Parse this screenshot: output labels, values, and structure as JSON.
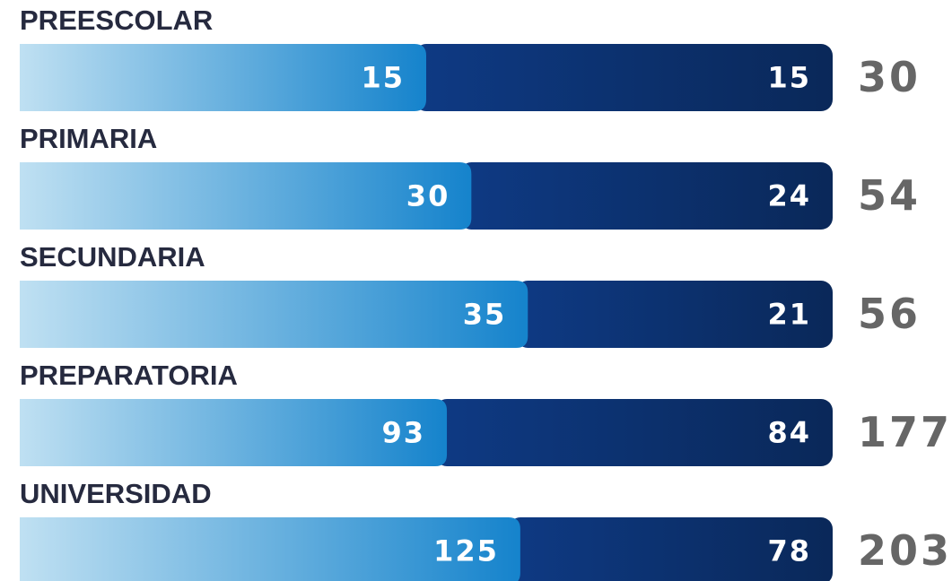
{
  "chart_data": {
    "type": "bar",
    "orientation": "horizontal",
    "stacked": "percent",
    "categories": [
      "PREESCOLAR",
      "PRIMARIA",
      "SECUNDARIA",
      "PREPARATORIA",
      "UNIVERSIDAD"
    ],
    "series": [
      {
        "colors": [
          "#bfe0f2",
          "#1583cc"
        ],
        "values": [
          15,
          30,
          35,
          93,
          125
        ]
      },
      {
        "colors": [
          "#0e3a84",
          "#0a2859"
        ],
        "values": [
          15,
          24,
          21,
          84,
          78
        ]
      }
    ],
    "totals": [
      30,
      54,
      56,
      177,
      203
    ]
  }
}
